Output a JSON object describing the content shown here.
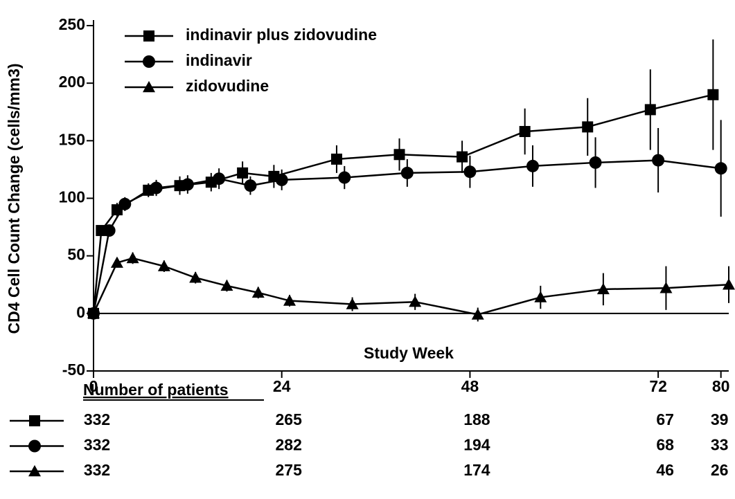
{
  "chart_data": {
    "type": "line",
    "x_label": "Study Week",
    "y_label": "CD4 Cell Count Change (cells/mm3)",
    "xlim": [
      0,
      81
    ],
    "xticks": [
      0,
      24,
      48,
      72,
      80
    ],
    "ylim": [
      -50,
      250
    ],
    "yticks": [
      -50,
      0,
      50,
      100,
      150,
      200,
      250
    ],
    "legend": "upper left",
    "series": [
      {
        "name": "indinavir plus zidovudine",
        "marker": "square",
        "color": "#000000",
        "x": [
          0,
          1,
          3,
          7,
          11,
          15,
          19,
          23,
          31,
          39,
          47,
          55,
          63,
          71,
          79
        ],
        "values": [
          0,
          72,
          90,
          107,
          111,
          114,
          122,
          119,
          134,
          138,
          136,
          158,
          162,
          177,
          190
        ],
        "errors": [
          0,
          4,
          6,
          6,
          8,
          8,
          10,
          10,
          12,
          14,
          14,
          20,
          25,
          35,
          48
        ]
      },
      {
        "name": "indinavir",
        "marker": "circle",
        "color": "#000000",
        "x": [
          0,
          2,
          4,
          8,
          12,
          16,
          20,
          24,
          32,
          40,
          48,
          56,
          64,
          72,
          80
        ],
        "values": [
          0,
          72,
          95,
          109,
          112,
          117,
          111,
          116,
          118,
          122,
          123,
          128,
          131,
          133,
          126
        ],
        "errors": [
          0,
          4,
          6,
          7,
          8,
          9,
          8,
          9,
          10,
          12,
          14,
          18,
          22,
          28,
          42
        ]
      },
      {
        "name": "zidovudine",
        "marker": "triangle",
        "color": "#000000",
        "x": [
          0,
          3,
          5,
          9,
          13,
          17,
          21,
          25,
          33,
          41,
          49,
          57,
          65,
          73,
          81
        ],
        "values": [
          0,
          44,
          48,
          41,
          31,
          24,
          18,
          11,
          8,
          10,
          -1,
          14,
          21,
          22,
          25
        ],
        "errors": [
          0,
          4,
          5,
          5,
          5,
          5,
          5,
          5,
          6,
          7,
          6,
          10,
          14,
          19,
          16
        ]
      }
    ],
    "patients": {
      "title": "Number of patients",
      "rows": [
        [
          332,
          265,
          188,
          67,
          39
        ],
        [
          332,
          282,
          194,
          68,
          33
        ],
        [
          332,
          275,
          174,
          46,
          26
        ]
      ]
    }
  }
}
